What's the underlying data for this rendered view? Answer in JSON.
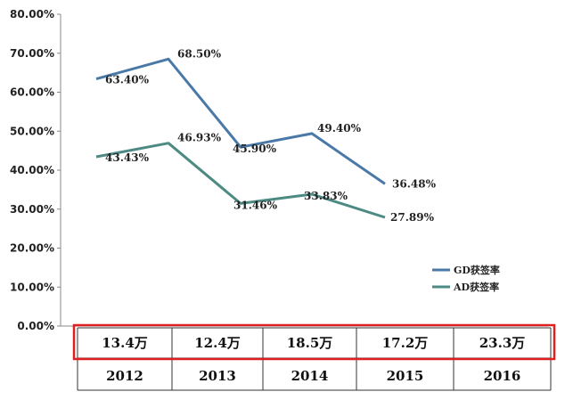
{
  "chart_data": {
    "type": "line",
    "categories": [
      "2012",
      "2013",
      "2014",
      "2015",
      "2016"
    ],
    "ylim": [
      0,
      80
    ],
    "yticks": [
      0,
      10,
      20,
      30,
      40,
      50,
      60,
      70,
      80
    ],
    "ytick_labels": [
      "0.00%",
      "10.00%",
      "20.00%",
      "30.00%",
      "40.00%",
      "50.00%",
      "60.00%",
      "70.00%",
      "80.00%"
    ],
    "grid": false,
    "legend_position": "right",
    "series": [
      {
        "name": "GD获签率",
        "color": "#4a79a8",
        "values": [
          63.4,
          68.5,
          45.9,
          49.4,
          36.48
        ],
        "labels": [
          "63.40%",
          "68.50%",
          "45.90%",
          "49.40%",
          "36.48%"
        ]
      },
      {
        "name": "AD获签率",
        "color": "#4d8a84",
        "values": [
          43.43,
          46.93,
          31.46,
          33.83,
          27.89
        ],
        "labels": [
          "43.43%",
          "46.93%",
          "31.46%",
          "33.83%",
          "27.89%"
        ]
      }
    ],
    "table": {
      "row1": [
        "13.4万",
        "12.4万",
        "18.5万",
        "17.2万",
        "23.3万"
      ],
      "row2": [
        "2012",
        "2013",
        "2014",
        "2015",
        "2016"
      ],
      "highlight_color": "#e02020"
    }
  }
}
